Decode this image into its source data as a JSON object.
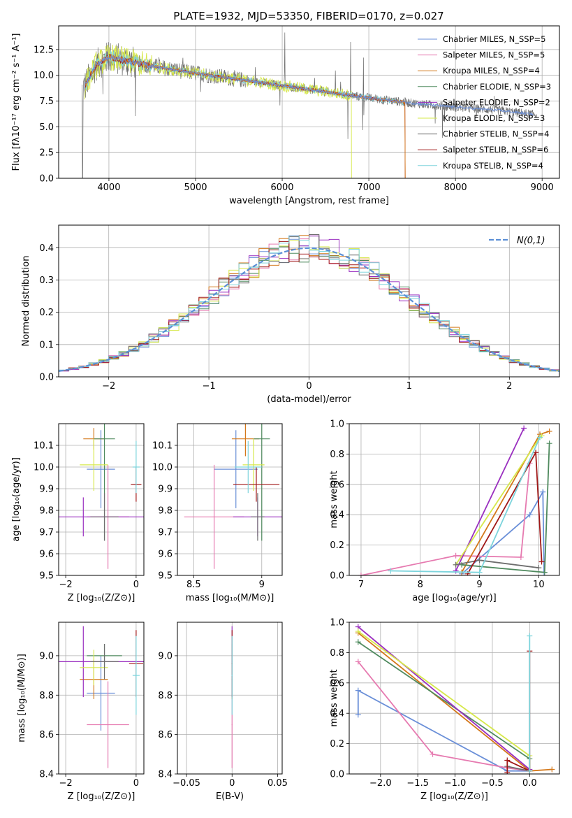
{
  "figure_title": "PLATE=1932, MJD=53350, FIBERID=0170, z=0.027",
  "colors": {
    "Chabrier MILES": "#6a8fd8",
    "Salpeter MILES": "#e67ab0",
    "Kroupa MILES": "#d4781a",
    "Chabrier ELODIE": "#4f8a5e",
    "Salpeter ELODIE": "#9a2fc0",
    "Kroupa ELODIE": "#d6e84a",
    "Chabrier STELIB": "#6e6e6e",
    "Salpeter STELIB": "#a01818",
    "Kroupa STELIB": "#7cd4dc",
    "normal": "#5b8fd6"
  },
  "chart_data": [
    {
      "id": "spectrum",
      "type": "line",
      "title": "PLATE=1932, MJD=53350, FIBERID=0170, z=0.027",
      "xlabel": "wavelength [Angstrom, rest frame]",
      "ylabel": "Flux [fλ10⁻¹⁷ erg cm⁻² s⁻¹ A⁻¹]",
      "xlim": [
        3420,
        9200
      ],
      "ylim": [
        0,
        14.8
      ],
      "xticks": [
        4000,
        5000,
        6000,
        7000,
        8000,
        9000
      ],
      "yticks": [
        0.0,
        2.5,
        5.0,
        7.5,
        10.0,
        12.5
      ],
      "legend_position": "top-right",
      "legend": [
        "Chabrier MILES, N_SSP=5",
        "Salpeter MILES, N_SSP=5",
        "Kroupa MILES, N_SSP=4",
        "Chabrier ELODIE, N_SSP=3",
        "Salpeter ELODIE, N_SSP=2",
        "Kroupa ELODIE, N_SSP=3",
        "Chabrier STELIB, N_SSP=4",
        "Salpeter STELIB, N_SSP=6",
        "Kroupa STELIB, N_SSP=4"
      ],
      "continuum_points": [
        [
          3700,
          8.6
        ],
        [
          3850,
          11.0
        ],
        [
          4000,
          11.8
        ],
        [
          4200,
          11.4
        ],
        [
          4500,
          10.9
        ],
        [
          5000,
          10.2
        ],
        [
          5500,
          9.6
        ],
        [
          6000,
          9.0
        ],
        [
          6500,
          8.4
        ],
        [
          7000,
          7.8
        ],
        [
          7500,
          7.3
        ],
        [
          8000,
          6.9
        ],
        [
          8500,
          6.6
        ],
        [
          8900,
          6.2
        ]
      ]
    },
    {
      "id": "residuals",
      "type": "bar",
      "xlabel": "(data-model)/error",
      "ylabel": "Normed distribution",
      "xlim": [
        -2.5,
        2.5
      ],
      "ylim": [
        0,
        0.47
      ],
      "xticks": [
        -2,
        -1,
        0,
        1,
        2
      ],
      "yticks": [
        0.0,
        0.1,
        0.2,
        0.3,
        0.4
      ],
      "bin_width": 0.1,
      "legend": [
        "N(0,1)"
      ],
      "legend_position": "top-right"
    },
    {
      "id": "age_vs_Z",
      "type": "scatter",
      "xlabel": "Z [log₁₀(Z/Z⊙)]",
      "ylabel": "age [log₁₀(age/yr)]",
      "xlim": [
        -2.2,
        0.22
      ],
      "ylim": [
        9.5,
        10.2
      ],
      "xticks": [
        -2,
        0
      ],
      "yticks": [
        9.5,
        9.6,
        9.7,
        9.8,
        9.9,
        10.0,
        10.1
      ],
      "points": [
        {
          "model": "Chabrier MILES",
          "x": -1.0,
          "xerr": 0.4,
          "y": 9.99,
          "yerr": 0.18
        },
        {
          "model": "Salpeter MILES",
          "x": -0.8,
          "xerr": 0.6,
          "y": 9.77,
          "yerr": 0.24
        },
        {
          "model": "Kroupa MILES",
          "x": -1.2,
          "xerr": 0.3,
          "y": 10.13,
          "yerr": 0.05
        },
        {
          "model": "Chabrier ELODIE",
          "x": -0.9,
          "xerr": 0.3,
          "y": 10.13,
          "yerr": 0.47
        },
        {
          "model": "Salpeter ELODIE",
          "x": -1.5,
          "xerr": 2.0,
          "y": 9.77,
          "yerr": 0.09
        },
        {
          "model": "Kroupa ELODIE",
          "x": -1.2,
          "xerr": 0.4,
          "y": 10.01,
          "yerr": 0.12
        },
        {
          "model": "Chabrier STELIB",
          "x": -0.9,
          "xerr": 0.4,
          "y": 9.77,
          "yerr": 0.11
        },
        {
          "model": "Salpeter STELIB",
          "x": 0.0,
          "xerr": 0.15,
          "y": 9.92,
          "yerr": 0.08
        },
        {
          "model": "Kroupa STELIB",
          "x": 0.0,
          "xerr": 0.1,
          "y": 10.0,
          "yerr": 0.12
        }
      ]
    },
    {
      "id": "age_vs_mass",
      "type": "scatter",
      "xlabel": "mass [log₁₀(M/M⊙)]",
      "ylabel": "",
      "xlim": [
        8.38,
        9.15
      ],
      "ylim": [
        9.5,
        10.2
      ],
      "xticks": [
        8.5,
        9.0
      ],
      "yticks": [
        9.5,
        9.6,
        9.7,
        9.8,
        9.9,
        10.0,
        10.1
      ],
      "points": [
        {
          "model": "Chabrier MILES",
          "x": 8.81,
          "xerr": 0.16,
          "y": 9.99,
          "yerr": 0.18
        },
        {
          "model": "Salpeter MILES",
          "x": 8.65,
          "xerr": 0.22,
          "y": 9.77,
          "yerr": 0.24
        },
        {
          "model": "Kroupa MILES",
          "x": 8.88,
          "xerr": 0.1,
          "y": 10.13,
          "yerr": 0.08
        },
        {
          "model": "Chabrier ELODIE",
          "x": 9.0,
          "xerr": 0.06,
          "y": 10.13,
          "yerr": 0.47
        },
        {
          "model": "Salpeter ELODIE",
          "x": 8.97,
          "xerr": 0.18,
          "y": 9.77,
          "yerr": 0.09
        },
        {
          "model": "Kroupa ELODIE",
          "x": 8.94,
          "xerr": 0.08,
          "y": 10.01,
          "yerr": 0.12
        },
        {
          "model": "Chabrier STELIB",
          "x": 8.97,
          "xerr": 0.05,
          "y": 9.77,
          "yerr": 0.11
        },
        {
          "model": "Salpeter STELIB",
          "x": 8.96,
          "xerr": 0.17,
          "y": 9.92,
          "yerr": 0.08
        },
        {
          "model": "Kroupa STELIB",
          "x": 8.9,
          "xerr": 0.1,
          "y": 10.0,
          "yerr": 0.12
        }
      ]
    },
    {
      "id": "massweight_vs_age",
      "type": "line",
      "xlabel": "age  [log₁₀(age/yr)]",
      "ylabel": "mass weight",
      "xlim": [
        6.8,
        10.35
      ],
      "ylim": [
        0,
        1.0
      ],
      "xticks": [
        7,
        8,
        9,
        10
      ],
      "yticks": [
        0.0,
        0.2,
        0.4,
        0.6,
        0.8,
        1.0
      ],
      "series": [
        {
          "model": "Chabrier MILES",
          "x": [
            8.7,
            9.85,
            10.07,
            10.09
          ],
          "y": [
            0.01,
            0.4,
            0.55,
            0.02
          ]
        },
        {
          "model": "Salpeter MILES",
          "x": [
            7.0,
            8.6,
            9.7,
            9.85
          ],
          "y": [
            0.0,
            0.13,
            0.12,
            0.74
          ]
        },
        {
          "model": "Kroupa MILES",
          "x": [
            8.7,
            10.02,
            10.18
          ],
          "y": [
            0.02,
            0.93,
            0.95
          ]
        },
        {
          "model": "Chabrier ELODIE",
          "x": [
            8.7,
            10.1,
            10.18
          ],
          "y": [
            0.07,
            0.02,
            0.87
          ]
        },
        {
          "model": "Salpeter ELODIE",
          "x": [
            8.6,
            9.75
          ],
          "y": [
            0.03,
            0.97
          ]
        },
        {
          "model": "Kroupa ELODIE",
          "x": [
            8.6,
            10.02,
            10.05
          ],
          "y": [
            0.07,
            0.91,
            0.92
          ]
        },
        {
          "model": "Chabrier STELIB",
          "x": [
            8.6,
            9.0,
            10.0
          ],
          "y": [
            0.07,
            0.1,
            0.05
          ]
        },
        {
          "model": "Salpeter STELIB",
          "x": [
            8.8,
            9.95,
            10.05
          ],
          "y": [
            0.01,
            0.81,
            0.09
          ]
        },
        {
          "model": "Kroupa STELIB",
          "x": [
            7.5,
            9.0,
            10.02
          ],
          "y": [
            0.03,
            0.02,
            0.91
          ]
        }
      ]
    },
    {
      "id": "mass_vs_Z",
      "type": "scatter",
      "xlabel": "Z [log₁₀(Z/Z⊙)]",
      "ylabel": "mass [log₁₀(M/M⊙)]",
      "xlim": [
        -2.2,
        0.22
      ],
      "ylim": [
        8.4,
        9.17
      ],
      "xticks": [
        -2,
        0
      ],
      "yticks": [
        8.4,
        8.6,
        8.8,
        9.0
      ],
      "points": [
        {
          "model": "Chabrier MILES",
          "x": -1.0,
          "xerr": 0.4,
          "y": 8.81,
          "yerr": 0.19
        },
        {
          "model": "Salpeter MILES",
          "x": -0.8,
          "xerr": 0.6,
          "y": 8.65,
          "yerr": 0.22
        },
        {
          "model": "Kroupa MILES",
          "x": -1.2,
          "xerr": 0.4,
          "y": 8.88,
          "yerr": 0.1
        },
        {
          "model": "Chabrier ELODIE",
          "x": -0.9,
          "xerr": 0.5,
          "y": 9.0,
          "yerr": 0.06
        },
        {
          "model": "Salpeter ELODIE",
          "x": -1.5,
          "xerr": 2.0,
          "y": 8.97,
          "yerr": 0.18
        },
        {
          "model": "Kroupa ELODIE",
          "x": -1.2,
          "xerr": 0.4,
          "y": 8.94,
          "yerr": 0.09
        },
        {
          "model": "Chabrier STELIB",
          "x": -0.9,
          "xerr": 0.4,
          "y": 8.97,
          "yerr": 0.09
        },
        {
          "model": "Salpeter STELIB",
          "x": 0.0,
          "xerr": 0.2,
          "y": 8.96,
          "yerr": 0.17
        },
        {
          "model": "Kroupa STELIB",
          "x": 0.0,
          "xerr": 0.1,
          "y": 8.9,
          "yerr": 0.2
        }
      ]
    },
    {
      "id": "mass_vs_EBV",
      "type": "scatter",
      "xlabel": "E(B-V)",
      "ylabel": "",
      "xlim": [
        -0.06,
        0.055
      ],
      "ylim": [
        8.4,
        9.17
      ],
      "xticks": [
        -0.05,
        0.0,
        0.05
      ],
      "yticks": [
        8.4,
        8.6,
        8.8,
        9.0
      ],
      "points": [
        {
          "model": "Salpeter MILES",
          "x": 0.0,
          "y": 8.65,
          "yerr": 0.22
        },
        {
          "model": "Kroupa MILES",
          "x": 0.0,
          "y": 8.88,
          "yerr": 0.1
        },
        {
          "model": "Chabrier ELODIE",
          "x": 0.0,
          "y": 9.0,
          "yerr": 0.06
        },
        {
          "model": "Salpeter ELODIE",
          "x": 0.0,
          "y": 8.97,
          "yerr": 0.18
        },
        {
          "model": "Salpeter STELIB",
          "x": 0.0,
          "y": 8.96,
          "yerr": 0.17
        },
        {
          "model": "Kroupa STELIB",
          "x": 0.0,
          "y": 8.9,
          "yerr": 0.2
        }
      ]
    },
    {
      "id": "massweight_vs_Z",
      "type": "line",
      "xlabel": "Z [log₁₀(Z/Z⊙)]",
      "ylabel": "mass weight",
      "xlim": [
        -2.42,
        0.4
      ],
      "ylim": [
        0,
        1.0
      ],
      "xticks": [
        -2.0,
        -1.5,
        -1.0,
        -0.5,
        0.0
      ],
      "yticks": [
        0.0,
        0.2,
        0.4,
        0.6,
        0.8,
        1.0
      ],
      "series": [
        {
          "model": "Chabrier MILES",
          "x": [
            -2.3,
            -2.3,
            -0.3,
            0.0
          ],
          "y": [
            0.39,
            0.55,
            0.02,
            0.02
          ]
        },
        {
          "model": "Salpeter MILES",
          "x": [
            -2.3,
            -1.3,
            -0.3,
            0.0
          ],
          "y": [
            0.74,
            0.13,
            0.04,
            0.02
          ]
        },
        {
          "model": "Kroupa MILES",
          "x": [
            -2.3,
            0.0,
            0.3
          ],
          "y": [
            0.93,
            0.02,
            0.03
          ]
        },
        {
          "model": "Chabrier ELODIE",
          "x": [
            -2.3,
            0.0,
            0.0
          ],
          "y": [
            0.87,
            0.1,
            0.02
          ]
        },
        {
          "model": "Salpeter ELODIE",
          "x": [
            -2.3,
            0.0
          ],
          "y": [
            0.97,
            0.03
          ]
        },
        {
          "model": "Kroupa ELODIE",
          "x": [
            -2.3,
            0.0,
            0.0
          ],
          "y": [
            0.94,
            0.12,
            0.02
          ]
        },
        {
          "model": "Chabrier STELIB",
          "x": [
            -0.3,
            0.0
          ],
          "y": [
            0.05,
            0.02
          ]
        },
        {
          "model": "Salpeter STELIB",
          "x": [
            -0.3,
            -0.3,
            0.0,
            0.0
          ],
          "y": [
            0.01,
            0.09,
            0.02,
            0.81
          ]
        },
        {
          "model": "Kroupa STELIB",
          "x": [
            0.0,
            0.0
          ],
          "y": [
            0.02,
            0.91
          ]
        }
      ]
    }
  ]
}
